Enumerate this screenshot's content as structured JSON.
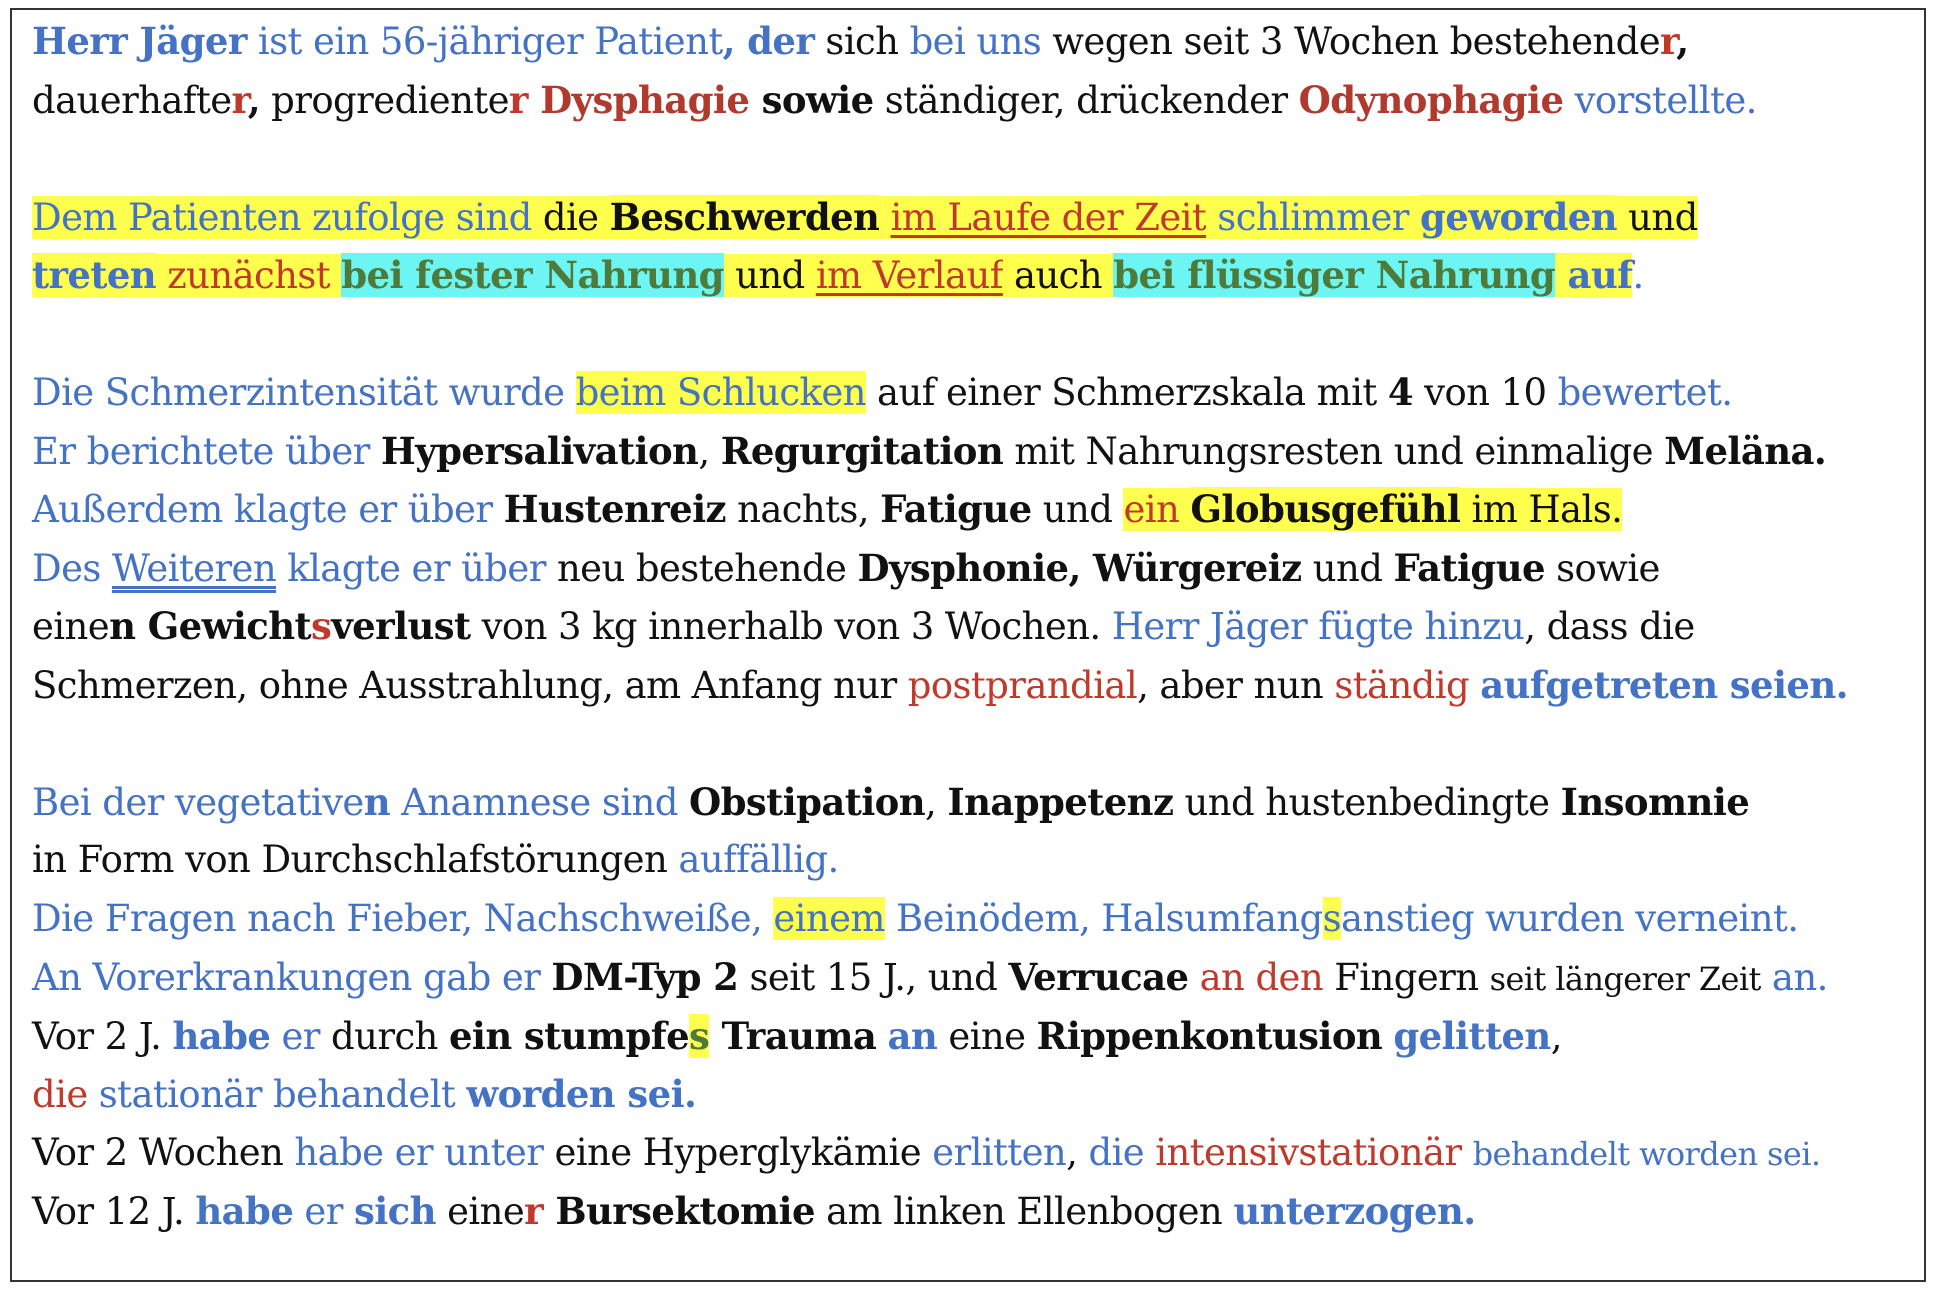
{
  "document": {
    "paragraphs": [
      {
        "lines": [
          [
            {
              "t": "Herr Jäger",
              "c": "blue b"
            },
            {
              "t": " ist ein 56-jähriger Patient",
              "c": "blue"
            },
            {
              "t": ", der",
              "c": "blue b"
            },
            {
              "t": " sich ",
              "c": "blk"
            },
            {
              "t": "bei uns",
              "c": "blue"
            },
            {
              "t": " wegen seit 3 Wochen bestehende",
              "c": "blk"
            },
            {
              "t": "r",
              "c": "red b"
            },
            {
              "t": ",",
              "c": "blk b"
            }
          ],
          [
            {
              "t": "dauerhafte",
              "c": "blk"
            },
            {
              "t": "r",
              "c": "red b"
            },
            {
              "t": ",",
              "c": "blk b"
            },
            {
              "t": " progrediente",
              "c": "blk"
            },
            {
              "t": "r",
              "c": "red b"
            },
            {
              "t": " Dysphagie",
              "c": "dred b"
            },
            {
              "t": " sowie",
              "c": "blk b"
            },
            {
              "t": " ständiger, drückender ",
              "c": "blk"
            },
            {
              "t": "Odynophagie",
              "c": "dred b"
            },
            {
              "t": " vorstellte.",
              "c": "blue"
            }
          ]
        ]
      },
      {
        "lines": [
          [
            {
              "t": "Dem Patienten zufolge sind",
              "c": "blue hy"
            },
            {
              "t": " die ",
              "c": "blk hy"
            },
            {
              "t": "Beschwerden",
              "c": "blk b hy"
            },
            {
              "t": " ",
              "c": "blk hy"
            },
            {
              "t": "im Laufe der Zeit",
              "c": "red u hy"
            },
            {
              "t": " schlimmer ",
              "c": "blue hy"
            },
            {
              "t": "geworden",
              "c": "blue b hy"
            },
            {
              "t": " und",
              "c": "blk hy"
            }
          ],
          [
            {
              "t": "treten",
              "c": "blue b hy"
            },
            {
              "t": " zunächst ",
              "c": "red hy"
            },
            {
              "t": "bei fester Nahrung",
              "c": "green b hc"
            },
            {
              "t": " und ",
              "c": "blk hy"
            },
            {
              "t": "im Verlauf",
              "c": "red u hy"
            },
            {
              "t": " auch ",
              "c": "blk hy"
            },
            {
              "t": "bei flüssiger Nahrung",
              "c": "green b hc"
            },
            {
              "t": " auf",
              "c": "blue b hy"
            },
            {
              "t": ".",
              "c": "blue"
            }
          ]
        ]
      },
      {
        "lines": [
          [
            {
              "t": "Die Schmerzintensität wurde ",
              "c": "blue"
            },
            {
              "t": "beim Schlucken",
              "c": "blue hy"
            },
            {
              "t": " auf einer Schmerzskala mit ",
              "c": "blk"
            },
            {
              "t": "4",
              "c": "blk b"
            },
            {
              "t": " von 10 ",
              "c": "blk"
            },
            {
              "t": "bewertet.",
              "c": "blue"
            }
          ],
          [
            {
              "t": "Er berichtete über ",
              "c": "blue"
            },
            {
              "t": "Hypersalivation",
              "c": "blk b"
            },
            {
              "t": ", ",
              "c": "blk"
            },
            {
              "t": "Regurgitation",
              "c": "blk b"
            },
            {
              "t": " mit Nahrungsresten und einmalige ",
              "c": "blk"
            },
            {
              "t": "Meläna.",
              "c": "blk b"
            }
          ],
          [
            {
              "t": "Außerdem klagte er über ",
              "c": "blue"
            },
            {
              "t": "Hustenreiz",
              "c": "blk b"
            },
            {
              "t": " nachts, ",
              "c": "blk"
            },
            {
              "t": "Fatigue",
              "c": "blk b"
            },
            {
              "t": " und ",
              "c": "blk"
            },
            {
              "t": "ein ",
              "c": "red hy"
            },
            {
              "t": "Globusgefühl",
              "c": "blk b hy"
            },
            {
              "t": " im Hals.",
              "c": "blk hy"
            }
          ],
          [
            {
              "t": "Des ",
              "c": "blue"
            },
            {
              "t": "Weiteren",
              "c": "blue uu"
            },
            {
              "t": " klagte er über",
              "c": "blue"
            },
            {
              "t": " neu bestehende ",
              "c": "blk"
            },
            {
              "t": "Dysphonie, Würgereiz",
              "c": "blk b"
            },
            {
              "t": " und ",
              "c": "blk"
            },
            {
              "t": "Fatigue",
              "c": "blk b"
            },
            {
              "t": " sowie",
              "c": "blk"
            }
          ],
          [
            {
              "t": "eine",
              "c": "blk"
            },
            {
              "t": "n Gewicht",
              "c": "blk b"
            },
            {
              "t": "s",
              "c": "red b"
            },
            {
              "t": "verlust",
              "c": "blk b"
            },
            {
              "t": " von 3 kg innerhalb von 3 Wochen. ",
              "c": "blk"
            },
            {
              "t": "Herr Jäger fügte hinzu",
              "c": "blue"
            },
            {
              "t": ", dass die",
              "c": "blk"
            }
          ],
          [
            {
              "t": "Schmerzen, ohne Ausstrahlung, am Anfang nur ",
              "c": "blk"
            },
            {
              "t": "postprandial",
              "c": "red"
            },
            {
              "t": ", aber nun ",
              "c": "blk"
            },
            {
              "t": "ständig",
              "c": "red"
            },
            {
              "t": " ",
              "c": "blk"
            },
            {
              "t": "aufgetreten seien.",
              "c": "blue b"
            }
          ]
        ]
      },
      {
        "lines": [
          [
            {
              "t": "Bei der vegetative",
              "c": "blue"
            },
            {
              "t": "n",
              "c": "blue b"
            },
            {
              "t": " Anamnese sind ",
              "c": "blue"
            },
            {
              "t": "Obstipation",
              "c": "blk b"
            },
            {
              "t": ", ",
              "c": "blk"
            },
            {
              "t": "Inappetenz",
              "c": "blk b"
            },
            {
              "t": " und hustenbedingte ",
              "c": "blk"
            },
            {
              "t": "Insomnie",
              "c": "blk b"
            }
          ],
          [
            {
              "t": "in Form von Durchschlafstörungen ",
              "c": "blk"
            },
            {
              "t": "auffällig.",
              "c": "blue"
            }
          ],
          [
            {
              "t": "Die Fragen nach Fieber, Nachschweiße, ",
              "c": "blue"
            },
            {
              "t": "einem",
              "c": "blue hy"
            },
            {
              "t": " Beinödem, Halsumfang",
              "c": "blue"
            },
            {
              "t": "s",
              "c": "blue hy"
            },
            {
              "t": "anstieg wurden verneint.",
              "c": "blue"
            }
          ],
          [
            {
              "t": "An Vorerkrankungen gab er ",
              "c": "blue"
            },
            {
              "t": "DM-Typ 2",
              "c": "blk b"
            },
            {
              "t": " seit 15 J., und ",
              "c": "blk"
            },
            {
              "t": "Verrucae",
              "c": "blk b"
            },
            {
              "t": " ",
              "c": "blk"
            },
            {
              "t": "an den",
              "c": "red"
            },
            {
              "t": " Fingern ",
              "c": "blk"
            },
            {
              "t": "seit längerer Zeit",
              "c": "blk sm"
            },
            {
              "t": " an.",
              "c": "blue"
            }
          ],
          [
            {
              "t": "Vor 2 J. ",
              "c": "blk"
            },
            {
              "t": "habe",
              "c": "blue b"
            },
            {
              "t": " er",
              "c": "blue"
            },
            {
              "t": " durch ",
              "c": "blk"
            },
            {
              "t": "ein stumpfe",
              "c": "blk b"
            },
            {
              "t": "s",
              "c": "green b hy"
            },
            {
              "t": " Trauma",
              "c": "blk b"
            },
            {
              "t": " ",
              "c": "blk"
            },
            {
              "t": "an",
              "c": "blue b"
            },
            {
              "t": " eine ",
              "c": "blk"
            },
            {
              "t": "Rippenkontusion",
              "c": "blk b"
            },
            {
              "t": " ",
              "c": "blk"
            },
            {
              "t": "gelitten",
              "c": "blue b"
            },
            {
              "t": ",",
              "c": "blk"
            }
          ],
          [
            {
              "t": "die",
              "c": "red"
            },
            {
              "t": " stationär behandelt ",
              "c": "blue"
            },
            {
              "t": "worden sei.",
              "c": "blue b"
            }
          ],
          [
            {
              "t": "Vor 2 Wochen ",
              "c": "blk"
            },
            {
              "t": "habe er unter",
              "c": "blue"
            },
            {
              "t": " eine Hyperglykämie ",
              "c": "blk"
            },
            {
              "t": "erlitten",
              "c": "blue"
            },
            {
              "t": ", ",
              "c": "blk"
            },
            {
              "t": "die",
              "c": "blue"
            },
            {
              "t": " ",
              "c": "blk"
            },
            {
              "t": "intensivstationär",
              "c": "red"
            },
            {
              "t": " ",
              "c": "blk"
            },
            {
              "t": "behandelt worden sei.",
              "c": "blue sm"
            }
          ],
          [
            {
              "t": "Vor 12 J. ",
              "c": "blk"
            },
            {
              "t": "habe",
              "c": "blue b"
            },
            {
              "t": " er ",
              "c": "blue"
            },
            {
              "t": "sich",
              "c": "blue b"
            },
            {
              "t": " eine",
              "c": "blk"
            },
            {
              "t": "r",
              "c": "red b"
            },
            {
              "t": " Bursektomie",
              "c": "blk b"
            },
            {
              "t": " am linken Ellenbogen ",
              "c": "blk"
            },
            {
              "t": "unterzogen.",
              "c": "blue b"
            }
          ]
        ]
      }
    ]
  }
}
